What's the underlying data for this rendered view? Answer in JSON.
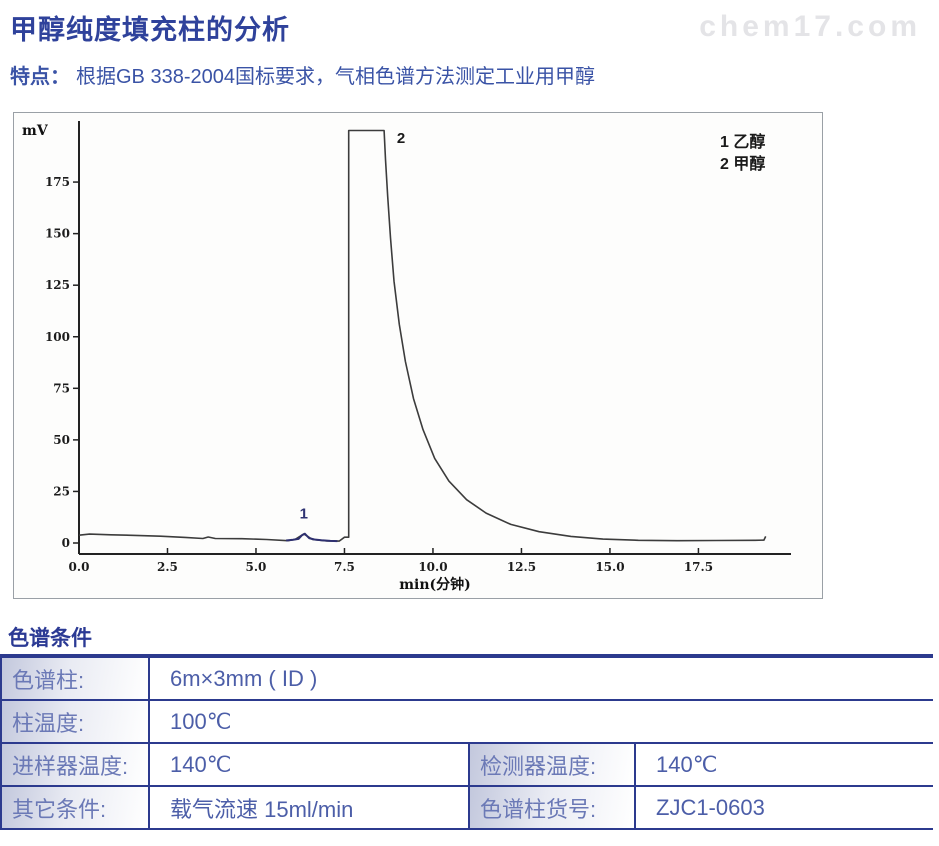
{
  "header": {
    "title": "甲醇纯度填充柱的分析",
    "watermark": "chem17.com",
    "feature_label": "特点：",
    "feature_text": "根据GB 338-2004国标要求，气相色谱方法测定工业用甲醇"
  },
  "colors": {
    "accent_navy": "#2c3a8e",
    "title_blue": "#2f429b",
    "body_blue": "#3a53a6",
    "label_blue": "#6b79b6",
    "value_blue": "#4c5ea8",
    "trace_gray": "#3c3c3c",
    "peak1_navy": "#2e3070",
    "watermark_gray": "#e4e4e7"
  },
  "chart_data": {
    "type": "line",
    "title": "",
    "xlabel": "min(分钟)",
    "ylabel": "mV",
    "xlim": [
      0,
      20.2
    ],
    "ylim": [
      0,
      208
    ],
    "xticks": [
      0.0,
      2.5,
      5.0,
      7.5,
      10.0,
      12.5,
      15.0,
      17.5
    ],
    "yticks": [
      0,
      25,
      50,
      75,
      100,
      125,
      150,
      175
    ],
    "grid": false,
    "legend_position": "top-right-inside",
    "legend": [
      {
        "num": "1",
        "label": "乙醇"
      },
      {
        "num": "2",
        "label": "甲醇"
      }
    ],
    "annotations": [
      {
        "text": "1",
        "x": 6.35,
        "y": 12,
        "color": "#2e3272"
      },
      {
        "text": "2",
        "x": 9.1,
        "y": 194,
        "color": "#1a1a1a"
      }
    ],
    "peaks": [
      {
        "id": 1,
        "name": "乙醇",
        "retention_min": 6.35,
        "height_mV": 4.5
      },
      {
        "id": 2,
        "name": "甲醇",
        "retention_min": 8.1,
        "height_mV": 200,
        "note": "clipped at top of scale"
      }
    ],
    "series": [
      {
        "name": "chromatogram-trace",
        "color": "#3c3c3c",
        "width": 1.6,
        "points": [
          [
            0,
            3.8
          ],
          [
            0.3,
            4.3
          ],
          [
            0.9,
            4.0
          ],
          [
            1.6,
            3.7
          ],
          [
            2.3,
            3.3
          ],
          [
            3.0,
            2.7
          ],
          [
            3.5,
            2.2
          ],
          [
            3.65,
            2.9
          ],
          [
            3.85,
            2.2
          ],
          [
            4.6,
            2.1
          ],
          [
            5.3,
            1.7
          ],
          [
            5.9,
            1.1
          ],
          [
            6.1,
            1.7
          ],
          [
            6.35,
            4.4
          ],
          [
            6.6,
            1.7
          ],
          [
            7.0,
            1.0
          ],
          [
            7.35,
            0.9
          ],
          [
            7.5,
            2.8
          ],
          [
            7.62,
            2.8
          ],
          [
            7.62,
            200
          ],
          [
            8.62,
            200
          ],
          [
            8.66,
            186
          ],
          [
            8.72,
            168
          ],
          [
            8.8,
            148
          ],
          [
            8.9,
            127
          ],
          [
            9.05,
            106
          ],
          [
            9.22,
            88
          ],
          [
            9.45,
            70
          ],
          [
            9.72,
            55
          ],
          [
            10.05,
            41
          ],
          [
            10.45,
            30
          ],
          [
            10.95,
            21
          ],
          [
            11.5,
            14.5
          ],
          [
            12.2,
            9
          ],
          [
            13.0,
            5.5
          ],
          [
            13.9,
            3.2
          ],
          [
            14.8,
            1.9
          ],
          [
            15.8,
            1.3
          ],
          [
            16.9,
            1.1
          ],
          [
            18.0,
            1.2
          ],
          [
            19.1,
            1.3
          ],
          [
            19.35,
            1.4
          ],
          [
            19.4,
            3.2
          ]
        ]
      },
      {
        "name": "peak1-marker",
        "color": "#2e3070",
        "width": 2,
        "points": [
          [
            5.85,
            1.2
          ],
          [
            6.05,
            1.6
          ],
          [
            6.2,
            2.0
          ],
          [
            6.3,
            3.8
          ],
          [
            6.38,
            4.5
          ],
          [
            6.5,
            2.4
          ],
          [
            6.65,
            1.7
          ],
          [
            6.85,
            1.3
          ],
          [
            7.1,
            1.0
          ],
          [
            7.3,
            0.9
          ]
        ]
      }
    ]
  },
  "conditions": {
    "section_title": "色谱条件",
    "rows": [
      {
        "label": "色谱柱:",
        "value": "6m×3mm ( ID )"
      },
      {
        "label": "柱温度:",
        "value": "100℃"
      },
      {
        "label": "进样器温度:",
        "value": "140℃",
        "label2": "检测器温度:",
        "value2": "140℃"
      },
      {
        "label": "其它条件:",
        "value": "载气流速 15ml/min",
        "label2": "色谱柱货号:",
        "value2": "ZJC1-0603"
      }
    ]
  }
}
